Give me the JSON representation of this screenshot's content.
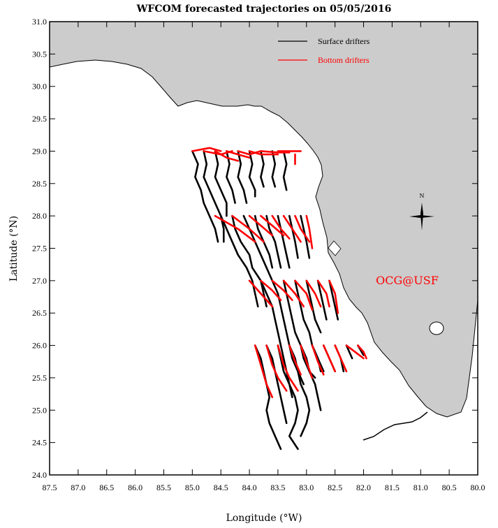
{
  "title": "WFCOM forecasted trajectories on 05/05/2016",
  "xlabel": "Longitude (°W)",
  "ylabel": "Latitude (°N)",
  "credit": "OCG@USF",
  "compass_label": "N",
  "colors": {
    "land": "#cccccc",
    "coast": "#000000",
    "surface": "#000000",
    "bottom": "#ff0000",
    "credit": "#ff0000"
  },
  "legend": {
    "surface": "Surface drifters",
    "bottom": "Bottom drifters"
  },
  "chart_data": {
    "type": "map",
    "x_ticks": [
      "87.5",
      "87.0",
      "86.5",
      "86.0",
      "85.5",
      "85.0",
      "84.5",
      "84.0",
      "83.5",
      "83.0",
      "82.5",
      "82.0",
      "81.5",
      "81.0",
      "80.5",
      "80.0"
    ],
    "y_ticks": [
      "31.0",
      "30.5",
      "30.0",
      "29.5",
      "29.0",
      "28.5",
      "28.0",
      "27.5",
      "27.0",
      "26.5",
      "26.0",
      "25.5",
      "25.0",
      "24.5",
      "24.0"
    ],
    "xlim": [
      87.5,
      80.0
    ],
    "ylim": [
      24.0,
      31.0
    ],
    "release_latitudes": [
      29.0,
      28.0,
      27.0,
      26.0
    ],
    "surface_tracks": [
      [
        [
          85.0,
          29.0
        ],
        [
          84.9,
          28.8
        ],
        [
          84.95,
          28.6
        ],
        [
          84.85,
          28.4
        ],
        [
          84.8,
          28.2
        ],
        [
          84.7,
          28.0
        ],
        [
          84.6,
          27.8
        ],
        [
          84.55,
          27.6
        ]
      ],
      [
        [
          84.8,
          29.0
        ],
        [
          84.75,
          28.8
        ],
        [
          84.8,
          28.6
        ],
        [
          84.7,
          28.4
        ],
        [
          84.6,
          28.2
        ],
        [
          84.5,
          28.0
        ],
        [
          84.45,
          27.8
        ],
        [
          84.45,
          27.6
        ]
      ],
      [
        [
          84.6,
          29.0
        ],
        [
          84.55,
          28.8
        ],
        [
          84.6,
          28.6
        ],
        [
          84.5,
          28.4
        ],
        [
          84.4,
          28.2
        ],
        [
          84.4,
          28.0
        ]
      ],
      [
        [
          84.4,
          29.0
        ],
        [
          84.35,
          28.8
        ],
        [
          84.4,
          28.6
        ],
        [
          84.3,
          28.4
        ],
        [
          84.25,
          28.2
        ]
      ],
      [
        [
          84.2,
          29.0
        ],
        [
          84.15,
          28.8
        ],
        [
          84.2,
          28.6
        ],
        [
          84.1,
          28.4
        ],
        [
          84.05,
          28.2
        ]
      ],
      [
        [
          84.0,
          29.0
        ],
        [
          83.95,
          28.8
        ],
        [
          84.0,
          28.6
        ],
        [
          83.9,
          28.4
        ],
        [
          83.9,
          28.3
        ]
      ],
      [
        [
          83.8,
          29.0
        ],
        [
          83.75,
          28.8
        ],
        [
          83.8,
          28.6
        ],
        [
          83.75,
          28.45
        ]
      ],
      [
        [
          83.6,
          29.0
        ],
        [
          83.55,
          28.8
        ],
        [
          83.6,
          28.6
        ],
        [
          83.55,
          28.45
        ]
      ],
      [
        [
          83.4,
          29.0
        ],
        [
          83.35,
          28.8
        ],
        [
          83.4,
          28.6
        ],
        [
          83.35,
          28.4
        ]
      ],
      [
        [
          84.5,
          28.0
        ],
        [
          84.4,
          27.8
        ],
        [
          84.3,
          27.6
        ],
        [
          84.2,
          27.4
        ],
        [
          84.05,
          27.2
        ],
        [
          83.95,
          27.0
        ],
        [
          83.9,
          26.8
        ],
        [
          83.85,
          26.6
        ]
      ],
      [
        [
          84.3,
          28.0
        ],
        [
          84.25,
          27.8
        ],
        [
          84.15,
          27.6
        ],
        [
          84.0,
          27.4
        ],
        [
          83.95,
          27.2
        ],
        [
          83.8,
          27.0
        ],
        [
          83.75,
          26.8
        ],
        [
          83.7,
          26.6
        ]
      ],
      [
        [
          84.1,
          28.0
        ],
        [
          84.0,
          27.8
        ],
        [
          83.9,
          27.6
        ],
        [
          83.8,
          27.4
        ],
        [
          83.7,
          27.2
        ],
        [
          83.6,
          27.0
        ]
      ],
      [
        [
          83.9,
          28.0
        ],
        [
          83.85,
          27.8
        ],
        [
          83.75,
          27.6
        ],
        [
          83.65,
          27.4
        ],
        [
          83.6,
          27.2
        ]
      ],
      [
        [
          83.7,
          28.0
        ],
        [
          83.65,
          27.8
        ],
        [
          83.55,
          27.6
        ],
        [
          83.5,
          27.4
        ],
        [
          83.45,
          27.2
        ]
      ],
      [
        [
          83.5,
          28.0
        ],
        [
          83.45,
          27.8
        ],
        [
          83.4,
          27.6
        ],
        [
          83.35,
          27.4
        ],
        [
          83.3,
          27.2
        ]
      ],
      [
        [
          83.3,
          28.0
        ],
        [
          83.25,
          27.8
        ],
        [
          83.2,
          27.6
        ],
        [
          83.15,
          27.35
        ]
      ],
      [
        [
          83.1,
          28.0
        ],
        [
          83.05,
          27.8
        ],
        [
          83.0,
          27.6
        ],
        [
          82.95,
          27.35
        ]
      ],
      [
        [
          83.8,
          27.0
        ],
        [
          83.7,
          26.8
        ],
        [
          83.6,
          26.6
        ],
        [
          83.55,
          26.4
        ],
        [
          83.5,
          26.2
        ],
        [
          83.45,
          26.0
        ],
        [
          83.4,
          25.8
        ],
        [
          83.35,
          25.6
        ],
        [
          83.3,
          25.4
        ],
        [
          83.2,
          25.2
        ],
        [
          83.15,
          25.0
        ],
        [
          83.2,
          24.8
        ],
        [
          83.3,
          24.6
        ],
        [
          83.15,
          24.4
        ]
      ],
      [
        [
          83.6,
          27.0
        ],
        [
          83.5,
          26.8
        ],
        [
          83.45,
          26.6
        ],
        [
          83.4,
          26.4
        ],
        [
          83.35,
          26.2
        ],
        [
          83.3,
          26.0
        ],
        [
          83.25,
          25.8
        ],
        [
          83.15,
          25.6
        ],
        [
          83.1,
          25.4
        ],
        [
          83.0,
          25.2
        ],
        [
          82.95,
          25.0
        ],
        [
          83.0,
          24.8
        ],
        [
          83.1,
          24.6
        ]
      ],
      [
        [
          83.4,
          27.0
        ],
        [
          83.35,
          26.8
        ],
        [
          83.3,
          26.6
        ],
        [
          83.25,
          26.4
        ],
        [
          83.2,
          26.2
        ],
        [
          83.1,
          26.0
        ],
        [
          83.05,
          25.8
        ],
        [
          82.95,
          25.6
        ],
        [
          82.85,
          25.4
        ],
        [
          82.8,
          25.2
        ],
        [
          82.75,
          25.0
        ]
      ],
      [
        [
          83.2,
          27.0
        ],
        [
          83.15,
          26.8
        ],
        [
          83.1,
          26.6
        ],
        [
          83.05,
          26.4
        ],
        [
          82.95,
          26.2
        ],
        [
          82.9,
          26.0
        ],
        [
          82.8,
          25.8
        ],
        [
          82.75,
          25.6
        ]
      ],
      [
        [
          83.0,
          27.0
        ],
        [
          82.95,
          26.8
        ],
        [
          82.9,
          26.6
        ],
        [
          82.85,
          26.4
        ],
        [
          82.75,
          26.2
        ]
      ],
      [
        [
          82.8,
          27.0
        ],
        [
          82.75,
          26.8
        ],
        [
          82.7,
          26.6
        ],
        [
          82.65,
          26.4
        ]
      ],
      [
        [
          82.6,
          27.0
        ],
        [
          82.55,
          26.8
        ],
        [
          82.5,
          26.6
        ],
        [
          82.45,
          26.4
        ]
      ],
      [
        [
          83.9,
          26.0
        ],
        [
          83.8,
          25.8
        ],
        [
          83.75,
          25.6
        ],
        [
          83.7,
          25.4
        ],
        [
          83.65,
          25.2
        ],
        [
          83.7,
          25.0
        ],
        [
          83.65,
          24.8
        ],
        [
          83.55,
          24.6
        ],
        [
          83.45,
          24.4
        ]
      ],
      [
        [
          83.7,
          26.0
        ],
        [
          83.6,
          25.8
        ],
        [
          83.55,
          25.6
        ],
        [
          83.5,
          25.4
        ],
        [
          83.45,
          25.2
        ],
        [
          83.4,
          25.0
        ],
        [
          83.35,
          24.8
        ]
      ],
      [
        [
          83.5,
          26.0
        ],
        [
          83.45,
          25.8
        ],
        [
          83.4,
          25.6
        ],
        [
          83.3,
          25.4
        ],
        [
          83.25,
          25.2
        ]
      ],
      [
        [
          83.3,
          26.0
        ],
        [
          83.2,
          25.8
        ],
        [
          83.15,
          25.6
        ],
        [
          83.05,
          25.4
        ]
      ],
      [
        [
          83.1,
          26.0
        ],
        [
          83.0,
          25.8
        ],
        [
          82.95,
          25.6
        ],
        [
          82.85,
          25.5
        ]
      ],
      [
        [
          82.9,
          26.0
        ],
        [
          82.8,
          25.8
        ],
        [
          82.7,
          25.6
        ]
      ],
      [
        [
          82.7,
          26.0
        ],
        [
          82.6,
          25.8
        ],
        [
          82.5,
          25.6
        ]
      ],
      [
        [
          82.5,
          26.0
        ],
        [
          82.4,
          25.8
        ],
        [
          82.35,
          25.6
        ]
      ],
      [
        [
          82.3,
          26.0
        ],
        [
          82.2,
          25.8
        ]
      ],
      [
        [
          82.1,
          26.0
        ],
        [
          82.0,
          25.85
        ]
      ]
    ],
    "bottom_tracks": [
      [
        [
          85.0,
          29.0
        ],
        [
          84.7,
          29.05
        ],
        [
          84.5,
          29.0
        ]
      ],
      [
        [
          84.8,
          29.0
        ],
        [
          84.5,
          28.95
        ],
        [
          84.3,
          29.0
        ]
      ],
      [
        [
          84.6,
          29.0
        ],
        [
          84.4,
          28.9
        ],
        [
          84.2,
          28.85
        ]
      ],
      [
        [
          84.4,
          29.0
        ],
        [
          84.2,
          28.95
        ],
        [
          84.0,
          28.9
        ]
      ],
      [
        [
          84.2,
          29.0
        ],
        [
          84.0,
          28.95
        ],
        [
          83.8,
          29.0
        ]
      ],
      [
        [
          84.0,
          29.0
        ],
        [
          83.8,
          28.95
        ],
        [
          83.5,
          28.95
        ]
      ],
      [
        [
          83.8,
          29.0
        ],
        [
          83.5,
          28.98
        ],
        [
          83.3,
          28.98
        ]
      ],
      [
        [
          83.5,
          29.0
        ],
        [
          83.3,
          29.0
        ],
        [
          83.1,
          29.0
        ]
      ],
      [
        [
          83.2,
          28.95
        ],
        [
          83.2,
          28.8
        ]
      ],
      [
        [
          84.6,
          28.0
        ],
        [
          84.2,
          27.8
        ],
        [
          83.9,
          27.6
        ]
      ],
      [
        [
          84.3,
          28.0
        ],
        [
          84.0,
          27.8
        ],
        [
          83.75,
          27.6
        ]
      ],
      [
        [
          84.0,
          28.0
        ],
        [
          83.8,
          27.85
        ],
        [
          83.6,
          27.7
        ]
      ],
      [
        [
          83.8,
          28.0
        ],
        [
          83.6,
          27.85
        ],
        [
          83.4,
          27.7
        ]
      ],
      [
        [
          83.6,
          28.0
        ],
        [
          83.45,
          27.8
        ],
        [
          83.3,
          27.65
        ]
      ],
      [
        [
          83.4,
          28.0
        ],
        [
          83.25,
          27.8
        ],
        [
          83.1,
          27.6
        ]
      ],
      [
        [
          83.2,
          28.0
        ],
        [
          83.1,
          27.8
        ],
        [
          82.95,
          27.6
        ]
      ],
      [
        [
          83.0,
          28.0
        ],
        [
          82.95,
          27.8
        ],
        [
          82.9,
          27.5
        ]
      ],
      [
        [
          84.0,
          27.0
        ],
        [
          83.8,
          26.8
        ],
        [
          83.6,
          26.6
        ]
      ],
      [
        [
          83.8,
          27.0
        ],
        [
          83.6,
          26.85
        ],
        [
          83.45,
          26.7
        ]
      ],
      [
        [
          83.6,
          27.0
        ],
        [
          83.4,
          26.85
        ],
        [
          83.25,
          26.7
        ]
      ],
      [
        [
          83.4,
          27.0
        ],
        [
          83.2,
          26.8
        ],
        [
          83.05,
          26.6
        ]
      ],
      [
        [
          83.2,
          27.0
        ],
        [
          83.0,
          26.8
        ],
        [
          82.9,
          26.55
        ]
      ],
      [
        [
          83.0,
          27.0
        ],
        [
          82.85,
          26.8
        ],
        [
          82.75,
          26.6
        ]
      ],
      [
        [
          82.8,
          27.0
        ],
        [
          82.65,
          26.8
        ],
        [
          82.6,
          26.6
        ]
      ],
      [
        [
          82.6,
          27.0
        ],
        [
          82.5,
          26.8
        ],
        [
          82.45,
          26.5
        ]
      ],
      [
        [
          83.9,
          26.0
        ],
        [
          83.8,
          25.7
        ],
        [
          83.7,
          25.4
        ],
        [
          83.6,
          25.2
        ]
      ],
      [
        [
          83.7,
          26.0
        ],
        [
          83.6,
          25.7
        ],
        [
          83.5,
          25.5
        ],
        [
          83.35,
          25.3
        ]
      ],
      [
        [
          83.5,
          26.0
        ],
        [
          83.4,
          25.7
        ],
        [
          83.3,
          25.5
        ],
        [
          83.15,
          25.3
        ]
      ],
      [
        [
          83.3,
          26.0
        ],
        [
          83.2,
          25.75
        ],
        [
          83.1,
          25.55
        ]
      ],
      [
        [
          83.1,
          26.0
        ],
        [
          83.0,
          25.75
        ],
        [
          82.9,
          25.5
        ]
      ],
      [
        [
          82.9,
          26.0
        ],
        [
          82.8,
          25.75
        ],
        [
          82.7,
          25.55
        ]
      ],
      [
        [
          82.7,
          26.0
        ],
        [
          82.6,
          25.8
        ],
        [
          82.5,
          25.6
        ]
      ],
      [
        [
          82.5,
          26.0
        ],
        [
          82.4,
          25.8
        ],
        [
          82.3,
          25.6
        ]
      ],
      [
        [
          82.3,
          26.0
        ],
        [
          82.15,
          25.9
        ],
        [
          82.0,
          25.8
        ]
      ],
      [
        [
          82.1,
          26.0
        ],
        [
          82.0,
          25.9
        ],
        [
          81.95,
          25.8
        ]
      ]
    ]
  }
}
